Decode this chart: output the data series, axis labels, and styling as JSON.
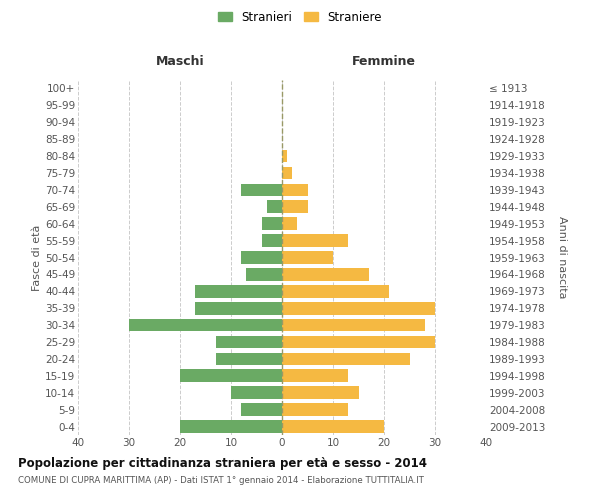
{
  "age_groups": [
    "0-4",
    "5-9",
    "10-14",
    "15-19",
    "20-24",
    "25-29",
    "30-34",
    "35-39",
    "40-44",
    "45-49",
    "50-54",
    "55-59",
    "60-64",
    "65-69",
    "70-74",
    "75-79",
    "80-84",
    "85-89",
    "90-94",
    "95-99",
    "100+"
  ],
  "birth_years": [
    "2009-2013",
    "2004-2008",
    "1999-2003",
    "1994-1998",
    "1989-1993",
    "1984-1988",
    "1979-1983",
    "1974-1978",
    "1969-1973",
    "1964-1968",
    "1959-1963",
    "1954-1958",
    "1949-1953",
    "1944-1948",
    "1939-1943",
    "1934-1938",
    "1929-1933",
    "1924-1928",
    "1919-1923",
    "1914-1918",
    "≤ 1913"
  ],
  "maschi": [
    20,
    8,
    10,
    20,
    13,
    13,
    30,
    17,
    17,
    7,
    8,
    4,
    4,
    3,
    8,
    0,
    0,
    0,
    0,
    0,
    0
  ],
  "femmine": [
    20,
    13,
    15,
    13,
    25,
    30,
    28,
    30,
    21,
    17,
    10,
    13,
    3,
    5,
    5,
    2,
    1,
    0,
    0,
    0,
    0
  ],
  "maschi_color": "#6aaa64",
  "femmine_color": "#f5b942",
  "background_color": "#ffffff",
  "grid_color": "#cccccc",
  "title": "Popolazione per cittadinanza straniera per età e sesso - 2014",
  "subtitle": "COMUNE DI CUPRA MARITTIMA (AP) - Dati ISTAT 1° gennaio 2014 - Elaborazione TUTTITALIA.IT",
  "ylabel_left": "Fasce di età",
  "ylabel_right": "Anni di nascita",
  "xlabel_left": "Maschi",
  "xlabel_right": "Femmine",
  "legend_maschi": "Stranieri",
  "legend_femmine": "Straniere",
  "xlim": 40
}
